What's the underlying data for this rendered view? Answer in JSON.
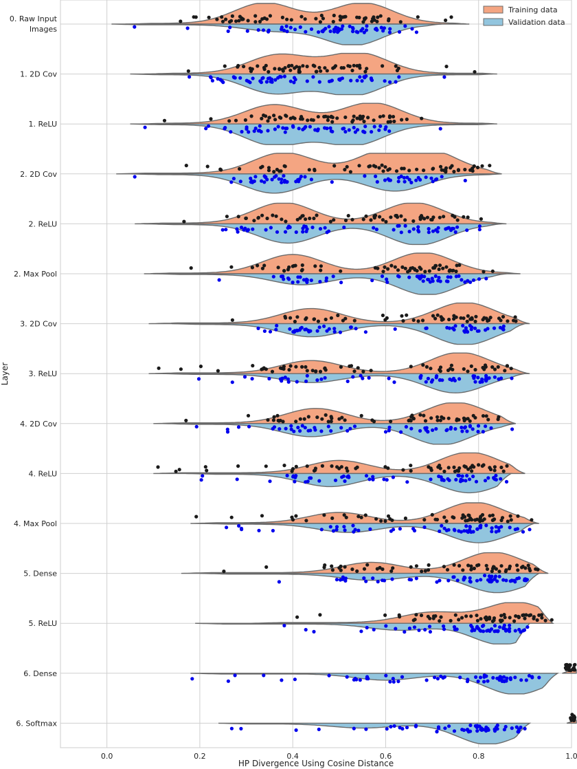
{
  "chart_data": {
    "type": "split-violin",
    "xlabel": "HP Divergence Using Cosine Distance",
    "ylabel": "Layer",
    "xlim": [
      -0.1,
      1.0
    ],
    "xticks": [
      "0.0",
      "0.2",
      "0.4",
      "0.6",
      "0.8",
      "1.0"
    ],
    "xtick_values": [
      0.0,
      0.2,
      0.4,
      0.6,
      0.8,
      1.0
    ],
    "grid": true,
    "legend": {
      "placement": "top-right",
      "entries": [
        {
          "name": "Training data",
          "color": "#f4a582"
        },
        {
          "name": "Validation data",
          "color": "#92c5de"
        }
      ]
    },
    "point_colors": {
      "training": "#1a1a1a",
      "validation": "#0000ee"
    },
    "categories": [
      {
        "label": "0. Raw Input Images",
        "train": {
          "range": [
            0.04,
            0.78
          ],
          "peaks": [
            [
              0.34,
              1.0
            ],
            [
              0.55,
              1.0
            ]
          ]
        },
        "val": {
          "range": [
            0.01,
            0.72
          ],
          "peaks": [
            [
              0.36,
              0.3
            ],
            [
              0.53,
              1.0
            ]
          ]
        }
      },
      {
        "label": "1. 2D Cov",
        "train": {
          "range": [
            0.08,
            0.84
          ],
          "peaks": [
            [
              0.37,
              0.9
            ],
            [
              0.54,
              1.0
            ]
          ]
        },
        "val": {
          "range": [
            0.05,
            0.83
          ],
          "peaks": [
            [
              0.36,
              0.9
            ],
            [
              0.53,
              1.0
            ]
          ]
        }
      },
      {
        "label": "1. ReLU",
        "train": {
          "range": [
            0.07,
            0.84
          ],
          "peaks": [
            [
              0.36,
              0.9
            ],
            [
              0.57,
              1.0
            ]
          ]
        },
        "val": {
          "range": [
            0.05,
            0.83
          ],
          "peaks": [
            [
              0.36,
              1.0
            ],
            [
              0.53,
              1.0
            ]
          ]
        }
      },
      {
        "label": "2. 2D Cov",
        "train": {
          "range": [
            0.02,
            0.85
          ],
          "peaks": [
            [
              0.38,
              1.0
            ],
            [
              0.6,
              1.0
            ],
            [
              0.7,
              0.9
            ]
          ]
        },
        "val": {
          "range": [
            0.05,
            0.85
          ],
          "peaks": [
            [
              0.36,
              0.9
            ],
            [
              0.62,
              0.8
            ]
          ]
        }
      },
      {
        "label": "2. ReLU",
        "train": {
          "range": [
            0.06,
            0.86
          ],
          "peaks": [
            [
              0.38,
              1.0
            ],
            [
              0.66,
              1.0
            ]
          ]
        },
        "val": {
          "range": [
            0.08,
            0.85
          ],
          "peaks": [
            [
              0.39,
              0.9
            ],
            [
              0.67,
              1.0
            ]
          ]
        }
      },
      {
        "label": "2. Max Pool",
        "train": {
          "range": [
            0.08,
            0.89
          ],
          "peaks": [
            [
              0.4,
              0.9
            ],
            [
              0.68,
              1.0
            ]
          ]
        },
        "val": {
          "range": [
            0.1,
            0.86
          ],
          "peaks": [
            [
              0.42,
              0.5
            ],
            [
              0.69,
              1.0
            ]
          ]
        }
      },
      {
        "label": "3. 2D Cov",
        "train": {
          "range": [
            0.09,
            0.91
          ],
          "peaks": [
            [
              0.44,
              0.7
            ],
            [
              0.77,
              1.0
            ]
          ]
        },
        "val": {
          "range": [
            0.14,
            0.9
          ],
          "peaks": [
            [
              0.44,
              0.6
            ],
            [
              0.77,
              1.0
            ]
          ]
        }
      },
      {
        "label": "3. ReLU",
        "train": {
          "range": [
            0.09,
            0.91
          ],
          "peaks": [
            [
              0.44,
              0.6
            ],
            [
              0.76,
              1.0
            ]
          ]
        },
        "val": {
          "range": [
            0.12,
            0.9
          ],
          "peaks": [
            [
              0.44,
              0.4
            ],
            [
              0.75,
              0.9
            ]
          ]
        }
      },
      {
        "label": "4. 2D Cov",
        "train": {
          "range": [
            0.1,
            0.88
          ],
          "peaks": [
            [
              0.45,
              0.7
            ],
            [
              0.75,
              1.0
            ]
          ]
        },
        "val": {
          "range": [
            0.12,
            0.88
          ],
          "peaks": [
            [
              0.44,
              0.6
            ],
            [
              0.72,
              1.0
            ]
          ]
        }
      },
      {
        "label": "4. ReLU",
        "train": {
          "range": [
            0.1,
            0.9
          ],
          "peaks": [
            [
              0.5,
              0.6
            ],
            [
              0.78,
              1.0
            ]
          ]
        },
        "val": {
          "range": [
            0.17,
            0.87
          ],
          "peaks": [
            [
              0.48,
              0.6
            ],
            [
              0.78,
              0.9
            ]
          ]
        }
      },
      {
        "label": "4. Max Pool",
        "train": {
          "range": [
            0.18,
            0.93
          ],
          "peaks": [
            [
              0.5,
              0.5
            ],
            [
              0.79,
              1.0
            ]
          ]
        },
        "val": {
          "range": [
            0.2,
            0.92
          ],
          "peaks": [
            [
              0.52,
              0.4
            ],
            [
              0.8,
              0.9
            ]
          ]
        }
      },
      {
        "label": "5. Dense",
        "train": {
          "range": [
            0.16,
            0.95
          ],
          "peaks": [
            [
              0.57,
              0.5
            ],
            [
              0.83,
              1.0
            ]
          ]
        },
        "val": {
          "range": [
            0.2,
            0.93
          ],
          "peaks": [
            [
              0.57,
              0.3
            ],
            [
              0.84,
              0.9
            ]
          ]
        }
      },
      {
        "label": "5. ReLU",
        "train": {
          "range": [
            0.31,
            0.96
          ],
          "peaks": [
            [
              0.7,
              0.5
            ],
            [
              0.88,
              1.0
            ]
          ]
        },
        "val": {
          "range": [
            0.19,
            0.91
          ],
          "peaks": [
            [
              0.63,
              0.3
            ],
            [
              0.85,
              1.0
            ]
          ]
        }
      },
      {
        "label": "6. Dense",
        "train": {
          "range": [
            0.98,
            1.02
          ],
          "peaks": [
            [
              1.0,
              0.4
            ]
          ]
        },
        "val": {
          "range": [
            0.18,
            0.97
          ],
          "peaks": [
            [
              0.6,
              0.3
            ],
            [
              0.88,
              1.0
            ]
          ]
        }
      },
      {
        "label": "6. Softmax",
        "train": {
          "range": [
            0.99,
            1.02
          ],
          "peaks": [
            [
              1.0,
              0.4
            ]
          ]
        },
        "val": {
          "range": [
            0.24,
            0.91
          ],
          "peaks": [
            [
              0.55,
              0.2
            ],
            [
              0.82,
              1.0
            ]
          ]
        }
      }
    ]
  }
}
